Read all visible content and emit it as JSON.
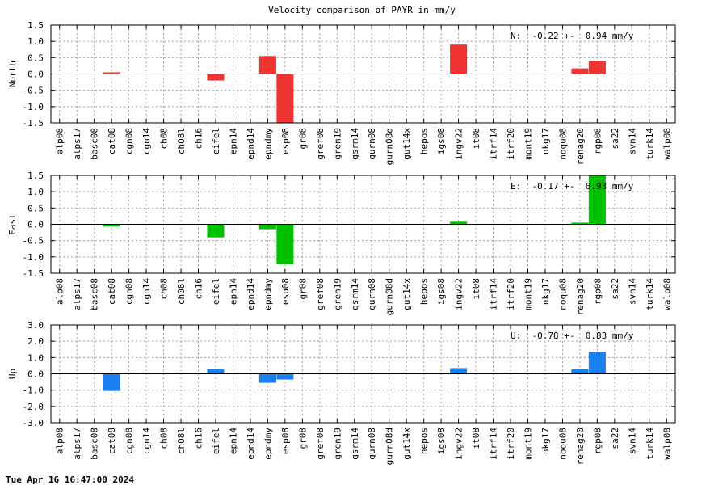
{
  "title": "Velocity comparison of PAYR in mm/y",
  "footer": "Tue Apr 16 16:47:00 2024",
  "chart_data": {
    "type": "bar",
    "title": "Velocity comparison of PAYR in mm/y",
    "categories": [
      "alp08",
      "alps17",
      "basc08",
      "cat08",
      "cgn08",
      "cgn14",
      "ch08",
      "ch08l",
      "ch16",
      "eifel",
      "epn14",
      "epnd14",
      "epndmy",
      "esp08",
      "gr08",
      "gref08",
      "gren19",
      "gsrm14",
      "gurn08",
      "gurn08d",
      "gut14x",
      "hepos",
      "igs08",
      "ingv22",
      "it08",
      "itrf14",
      "itrf20",
      "mont19",
      "nkg17",
      "noqu08",
      "renag20",
      "rgp08",
      "sa22",
      "svn14",
      "turk14",
      "walp08"
    ],
    "grid": true,
    "panels": [
      {
        "name": "north",
        "ylabel": "North",
        "ylim": [
          -1.5,
          1.5
        ],
        "yticks": [
          "1.5",
          "1.0",
          "0.5",
          "0.0",
          "-0.5",
          "-1.0",
          "-1.5"
        ],
        "yticks_values": [
          1.5,
          1.0,
          0.5,
          0.0,
          -0.5,
          -1.0,
          -1.5
        ],
        "color": "#f03232",
        "annotation": "N:  -0.22 +-  0.94 mm/y",
        "values": [
          null,
          null,
          null,
          0.05,
          null,
          null,
          null,
          null,
          null,
          -0.2,
          null,
          null,
          0.55,
          -1.5,
          null,
          null,
          null,
          null,
          null,
          null,
          null,
          null,
          null,
          0.9,
          null,
          null,
          null,
          null,
          null,
          null,
          0.17,
          0.4,
          null,
          null,
          null,
          null
        ]
      },
      {
        "name": "east",
        "ylabel": "East",
        "ylim": [
          -1.5,
          1.5
        ],
        "yticks": [
          "1.5",
          "1.0",
          "0.5",
          "0.0",
          "-0.5",
          "-1.0",
          "-1.5"
        ],
        "yticks_values": [
          1.5,
          1.0,
          0.5,
          0.0,
          -0.5,
          -1.0,
          -1.5
        ],
        "color": "#00c000",
        "annotation": "E:  -0.17 +-  0.93 mm/y",
        "values": [
          null,
          null,
          null,
          -0.07,
          null,
          null,
          null,
          null,
          null,
          -0.4,
          null,
          null,
          -0.15,
          -1.22,
          null,
          null,
          null,
          null,
          null,
          null,
          null,
          null,
          null,
          0.08,
          null,
          null,
          null,
          null,
          null,
          null,
          0.05,
          1.5,
          null,
          null,
          null,
          null
        ]
      },
      {
        "name": "up",
        "ylabel": "Up",
        "ylim": [
          -3.0,
          3.0
        ],
        "yticks": [
          "3.0",
          "2.0",
          "1.0",
          "0.0",
          "-1.0",
          "-2.0",
          "-3.0"
        ],
        "yticks_values": [
          3.0,
          2.0,
          1.0,
          0.0,
          -1.0,
          -2.0,
          -3.0
        ],
        "color": "#1a80f0",
        "annotation": "U:  -0.78 +-  0.83 mm/y",
        "values": [
          null,
          null,
          null,
          -1.05,
          null,
          null,
          null,
          null,
          null,
          0.3,
          null,
          null,
          -0.55,
          -0.35,
          null,
          null,
          null,
          null,
          null,
          null,
          null,
          null,
          null,
          0.35,
          null,
          null,
          null,
          null,
          null,
          null,
          0.3,
          1.35,
          null,
          null,
          null,
          null
        ]
      }
    ]
  }
}
